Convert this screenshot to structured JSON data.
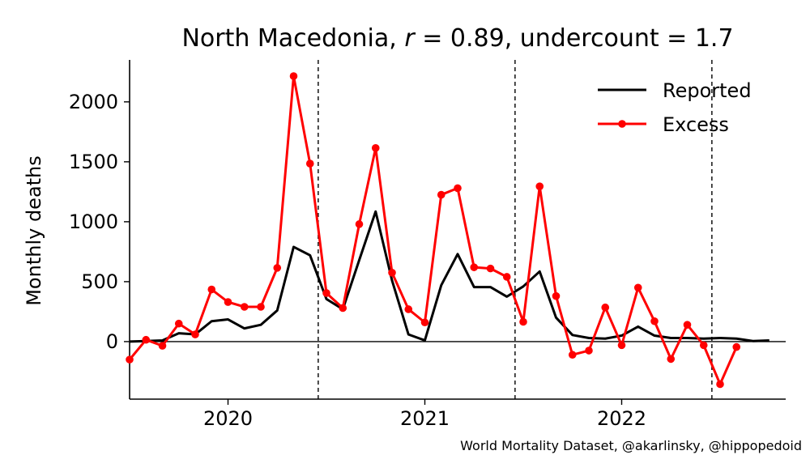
{
  "chart_data": {
    "type": "line",
    "title": "North Macedonia, r = 0.89, undercount = 1.7",
    "title_parts": {
      "country": "North Macedonia, ",
      "r_symbol": "r",
      "r_value": " = 0.89, undercount = 1.7"
    },
    "ylabel": "Monthly deaths",
    "ylim": [
      -480,
      2350
    ],
    "yticks": [
      0,
      500,
      1000,
      1500,
      2000
    ],
    "ytick_labels": [
      "0",
      "500",
      "1000",
      "1500",
      "2000"
    ],
    "xlim": [
      0,
      40
    ],
    "x_start": "2019-07",
    "xticks": [
      6,
      18,
      30
    ],
    "xtick_labels": [
      "2020",
      "2021",
      "2022"
    ],
    "vlines": [
      11.5,
      23.5,
      35.5
    ],
    "legend_position": "top-right",
    "credit": "World Mortality Dataset, @akarlinsky, @hippopedoid",
    "series": [
      {
        "name": "Reported",
        "color": "#000000",
        "marker": false,
        "x": [
          0,
          1,
          2,
          3,
          4,
          5,
          6,
          7,
          8,
          9,
          10,
          11,
          12,
          13,
          14,
          15,
          16,
          17,
          18,
          19,
          20,
          21,
          22,
          23,
          24,
          25,
          26,
          27,
          28,
          29,
          30,
          31,
          32,
          33,
          34,
          35,
          36,
          37,
          38,
          39
        ],
        "values": [
          0,
          5,
          10,
          70,
          60,
          170,
          185,
          110,
          140,
          260,
          790,
          720,
          355,
          270,
          680,
          1085,
          510,
          60,
          10,
          470,
          730,
          455,
          455,
          375,
          460,
          585,
          200,
          55,
          30,
          25,
          50,
          125,
          50,
          30,
          30,
          25,
          30,
          25,
          5,
          10
        ]
      },
      {
        "name": "Excess",
        "color": "#ff0000",
        "marker": true,
        "x": [
          0,
          1,
          2,
          3,
          4,
          5,
          6,
          7,
          8,
          9,
          10,
          11,
          12,
          13,
          14,
          15,
          16,
          17,
          18,
          19,
          20,
          21,
          22,
          23,
          24,
          25,
          26,
          27,
          28,
          29,
          30,
          31,
          32,
          33,
          34,
          35,
          36,
          37
        ],
        "values": [
          -150,
          15,
          -35,
          150,
          60,
          435,
          330,
          290,
          290,
          615,
          2215,
          1485,
          405,
          280,
          980,
          1615,
          575,
          270,
          160,
          1225,
          1280,
          620,
          610,
          540,
          165,
          1295,
          380,
          -110,
          -75,
          285,
          -30,
          450,
          170,
          -145,
          140,
          -30,
          -355,
          -45
        ]
      }
    ]
  }
}
